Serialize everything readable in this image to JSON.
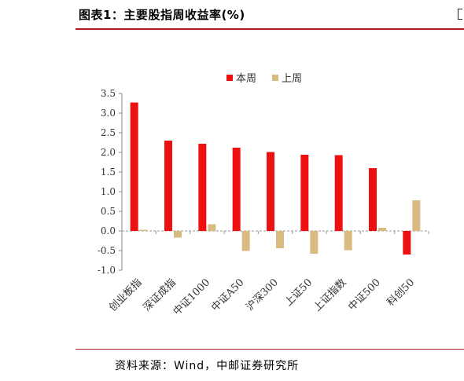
{
  "header": {
    "title": "图表1：主要股指周收益率(%)"
  },
  "footer": {
    "source": "资料来源：Wind，中邮证券研究所"
  },
  "chart_data": {
    "type": "bar",
    "categories": [
      "创业板指",
      "深证成指",
      "中证1000",
      "中证A50",
      "沪深300",
      "上证50",
      "上证指数",
      "中证500",
      "科创50"
    ],
    "series": [
      {
        "name": "本周",
        "color": "#ee1111",
        "values": [
          3.27,
          2.3,
          2.22,
          2.12,
          2.01,
          1.94,
          1.93,
          1.6,
          -0.6
        ]
      },
      {
        "name": "上周",
        "color": "#d9bb82",
        "values": [
          0.03,
          -0.17,
          0.17,
          -0.51,
          -0.44,
          -0.58,
          -0.49,
          0.08,
          0.78
        ]
      }
    ],
    "ylim": [
      -1.0,
      3.5
    ],
    "yticks": [
      "-1.0",
      "-0.5",
      "0.0",
      "0.5",
      "1.0",
      "1.5",
      "2.0",
      "2.5",
      "3.0",
      "3.5"
    ],
    "legend": "top-center",
    "grid": false
  }
}
